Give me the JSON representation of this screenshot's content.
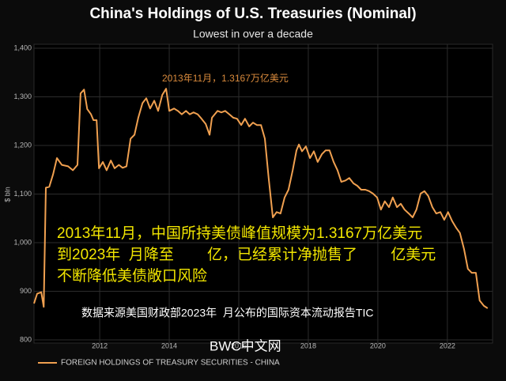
{
  "chart_data": {
    "type": "line",
    "title": "China's Holdings of U.S. Treasuries (Nominal)",
    "subtitle": "Lowest in over a decade",
    "y_label": "$ bln",
    "peak_annotation": "2013年11月，1.3167万亿美元",
    "overlay_text": [
      "2013年11月，中国所持美债峰值规模为1.3167万亿美元",
      "到2023年  月降至        亿，已经累计净抛售了        亿美元",
      "不断降低美债敞口风险"
    ],
    "source_note": "数据来源美国财政部2023年  月公布的国际资本流动报告TIC",
    "watermark": "BWC中文网",
    "grid": true,
    "xlim": [
      2010.11,
      2023.3
    ],
    "ylim": [
      800,
      1400
    ],
    "xticks": [
      2012,
      2014,
      2016,
      2018,
      2020,
      2022
    ],
    "yticks": [
      {
        "value": 1400,
        "label": "1,400"
      },
      {
        "value": 1300,
        "label": "1,300"
      },
      {
        "value": 1200,
        "label": "1,200"
      },
      {
        "value": 1100,
        "label": "1,100"
      },
      {
        "value": 1000,
        "label": "1,000"
      },
      900,
      800
    ],
    "x": [
      2010.11,
      2010.2,
      2010.32,
      2010.39,
      2010.45,
      2010.55,
      2010.66,
      2010.77,
      2010.91,
      2011.09,
      2011.23,
      2011.36,
      2011.45,
      2011.55,
      2011.64,
      2011.75,
      2011.82,
      2011.91,
      2011.98,
      2012.09,
      2012.2,
      2012.32,
      2012.43,
      2012.55,
      2012.66,
      2012.77,
      2012.89,
      2013.0,
      2013.11,
      2013.23,
      2013.34,
      2013.45,
      2013.57,
      2013.68,
      2013.8,
      2013.91,
      2014.0,
      2014.14,
      2014.25,
      2014.36,
      2014.48,
      2014.59,
      2014.7,
      2014.82,
      2014.93,
      2015.05,
      2015.16,
      2015.23,
      2015.39,
      2015.5,
      2015.61,
      2015.73,
      2015.84,
      2015.95,
      2016.07,
      2016.18,
      2016.3,
      2016.41,
      2016.52,
      2016.64,
      2016.75,
      2016.86,
      2016.98,
      2017.09,
      2017.2,
      2017.32,
      2017.43,
      2017.55,
      2017.66,
      2017.73,
      2017.82,
      2017.93,
      2018.05,
      2018.16,
      2018.27,
      2018.39,
      2018.5,
      2018.61,
      2018.73,
      2018.84,
      2018.95,
      2019.07,
      2019.18,
      2019.3,
      2019.41,
      2019.52,
      2019.64,
      2019.75,
      2019.86,
      2019.98,
      2020.09,
      2020.2,
      2020.32,
      2020.43,
      2020.55,
      2020.66,
      2020.77,
      2020.89,
      2021.0,
      2021.11,
      2021.23,
      2021.34,
      2021.45,
      2021.57,
      2021.68,
      2021.8,
      2021.91,
      2022.02,
      2022.14,
      2022.25,
      2022.36,
      2022.48,
      2022.59,
      2022.7,
      2022.82,
      2022.93,
      2023.05,
      2023.16
    ],
    "series": [
      {
        "name": "FOREIGN HOLDINGS OF TREASURY SECURITIES - CHINA",
        "color": "#f0a050",
        "values": [
          875,
          895,
          898,
          868,
          1113,
          1115,
          1141,
          1174,
          1160,
          1157,
          1149,
          1160,
          1307,
          1315,
          1275,
          1264,
          1252,
          1252,
          1153,
          1166,
          1149,
          1169,
          1153,
          1160,
          1154,
          1157,
          1214,
          1222,
          1257,
          1287,
          1297,
          1276,
          1292,
          1271,
          1304,
          1316.7,
          1271,
          1276,
          1271,
          1264,
          1271,
          1264,
          1268,
          1264,
          1255,
          1244,
          1222,
          1257,
          1271,
          1268,
          1271,
          1264,
          1257,
          1255,
          1242,
          1255,
          1239,
          1247,
          1242,
          1242,
          1214,
          1133,
          1052,
          1063,
          1060,
          1093,
          1109,
          1149,
          1190,
          1202,
          1188,
          1198,
          1174,
          1188,
          1166,
          1182,
          1190,
          1190,
          1166,
          1149,
          1125,
          1128,
          1133,
          1122,
          1117,
          1109,
          1109,
          1106,
          1101,
          1093,
          1068,
          1085,
          1073,
          1093,
          1073,
          1080,
          1068,
          1060,
          1052,
          1068,
          1101,
          1106,
          1096,
          1073,
          1060,
          1063,
          1047,
          1063,
          1044,
          1031,
          1020,
          987,
          946,
          938,
          938,
          881,
          870,
          865
        ]
      }
    ]
  }
}
